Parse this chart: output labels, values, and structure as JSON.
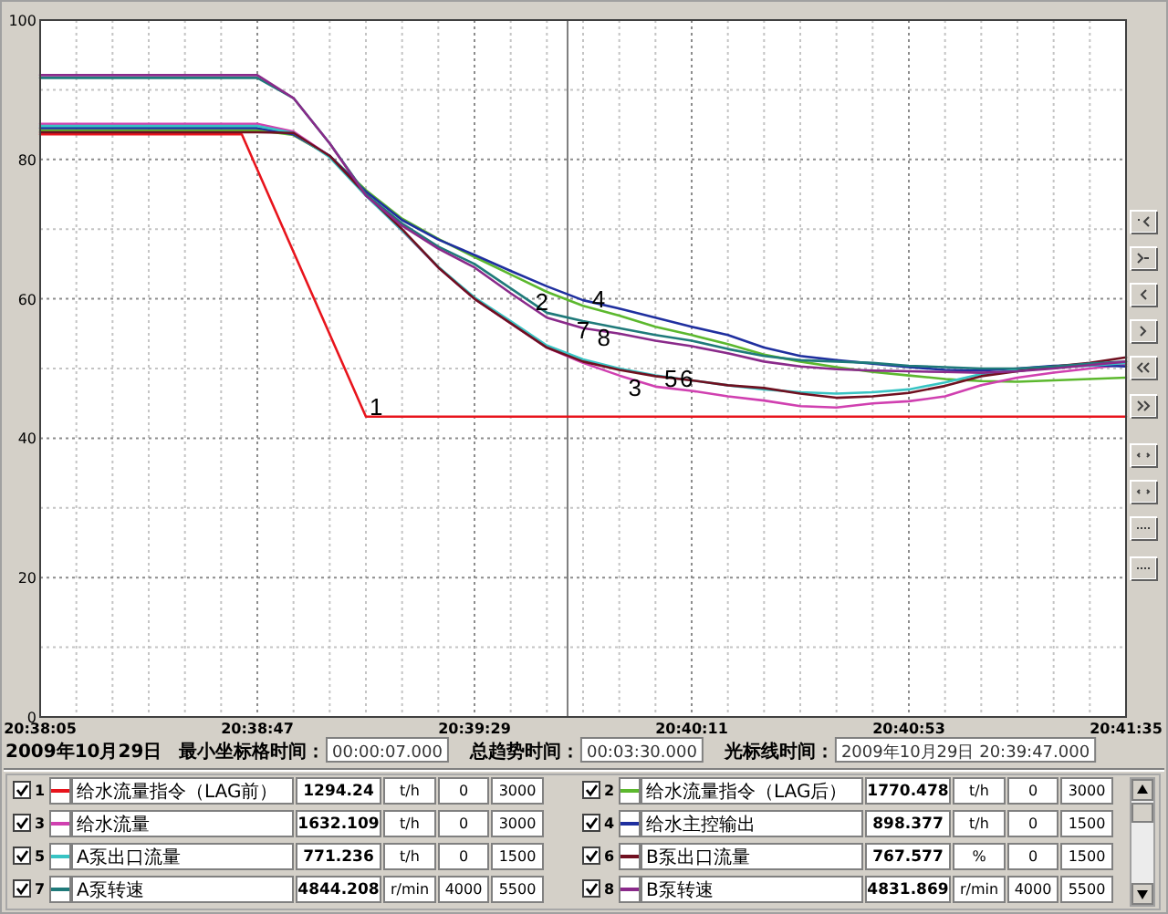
{
  "chart_data": {
    "type": "line",
    "x": [
      "2009-10-29T20:38:05",
      "2009-10-29T20:38:12",
      "2009-10-29T20:38:19",
      "2009-10-29T20:38:26",
      "2009-10-29T20:38:33",
      "2009-10-29T20:38:40",
      "2009-10-29T20:38:47",
      "2009-10-29T20:38:54",
      "2009-10-29T20:39:01",
      "2009-10-29T20:39:08",
      "2009-10-29T20:39:15",
      "2009-10-29T20:39:22",
      "2009-10-29T20:39:29",
      "2009-10-29T20:39:36",
      "2009-10-29T20:39:43",
      "2009-10-29T20:39:50",
      "2009-10-29T20:39:57",
      "2009-10-29T20:40:04",
      "2009-10-29T20:40:11",
      "2009-10-29T20:40:18",
      "2009-10-29T20:40:25",
      "2009-10-29T20:40:32",
      "2009-10-29T20:40:39",
      "2009-10-29T20:40:46",
      "2009-10-29T20:40:53",
      "2009-10-29T20:41:00",
      "2009-10-29T20:41:07",
      "2009-10-29T20:41:14",
      "2009-10-29T20:41:21",
      "2009-10-29T20:41:28",
      "2009-10-29T20:41:35"
    ],
    "series": [
      {
        "name": "给水流量指令（LAG前）",
        "color": "#e8141c",
        "x": [
          "2009-10-29T20:38:05",
          "2009-10-29T20:38:44",
          "2009-10-29T20:39:08",
          "2009-10-29T20:41:35"
        ],
        "values": [
          83.6,
          83.6,
          43.1,
          43.1
        ]
      },
      {
        "name": "给水流量指令（LAG后）",
        "color": "#5cb82e",
        "values": [
          84.2,
          84.2,
          84.2,
          84.2,
          84.2,
          84.2,
          84.2,
          83.5,
          80.5,
          75.6,
          71.5,
          68.6,
          66.0,
          63.5,
          61.0,
          59.0,
          57.6,
          56.0,
          54.8,
          53.5,
          52.0,
          51.0,
          50.2,
          49.5,
          49.0,
          48.5,
          48.2,
          48.1,
          48.3,
          48.5,
          48.7
        ]
      },
      {
        "name": "给水流量",
        "color": "#d040b0",
        "values": [
          85.1,
          85.1,
          85.1,
          85.1,
          85.1,
          85.1,
          85.1,
          84.0,
          80.5,
          75.0,
          69.8,
          64.5,
          60.0,
          56.5,
          53.0,
          50.8,
          49.0,
          47.4,
          46.8,
          46.0,
          45.4,
          44.6,
          44.4,
          45.0,
          45.3,
          46.0,
          47.6,
          48.7,
          49.4,
          50.0,
          50.6
        ]
      },
      {
        "name": "给水主控输出",
        "color": "#1f2f9f",
        "values": [
          84.5,
          84.5,
          84.5,
          84.5,
          84.5,
          84.5,
          84.5,
          83.6,
          80.5,
          75.4,
          71.3,
          68.5,
          66.3,
          64.0,
          61.8,
          59.8,
          58.6,
          57.3,
          56.0,
          54.8,
          53.0,
          51.8,
          51.2,
          50.7,
          50.2,
          49.8,
          49.7,
          50.0,
          50.4,
          50.5,
          50.3
        ]
      },
      {
        "name": "A泵出口流量",
        "color": "#38c4c4",
        "values": [
          84.8,
          84.8,
          84.8,
          84.8,
          84.8,
          84.8,
          84.8,
          83.8,
          80.3,
          74.8,
          69.8,
          64.6,
          60.2,
          56.8,
          53.3,
          51.3,
          50.0,
          49.0,
          48.3,
          47.6,
          47.0,
          46.6,
          46.4,
          46.6,
          47.0,
          48.0,
          49.2,
          49.8,
          50.2,
          50.4,
          50.8
        ]
      },
      {
        "name": "B泵出口流量",
        "color": "#701020",
        "values": [
          83.9,
          83.9,
          83.9,
          83.9,
          83.9,
          83.9,
          83.9,
          83.8,
          80.5,
          75.0,
          70.0,
          64.5,
          60.0,
          56.5,
          53.0,
          51.0,
          49.8,
          48.9,
          48.3,
          47.6,
          47.2,
          46.4,
          45.8,
          46.0,
          46.5,
          47.5,
          48.9,
          49.6,
          50.3,
          50.8,
          51.6
        ]
      },
      {
        "name": "A泵转速",
        "color": "#1f7a7a",
        "values": [
          91.7,
          91.7,
          91.7,
          91.7,
          91.7,
          91.7,
          91.7,
          88.8,
          82.3,
          75.0,
          70.8,
          67.5,
          65.0,
          61.5,
          58.0,
          56.8,
          55.8,
          54.8,
          54.0,
          52.8,
          51.8,
          51.2,
          51.0,
          50.8,
          50.4,
          50.2,
          50.0,
          50.0,
          50.3,
          50.7,
          51.0
        ]
      },
      {
        "name": "B泵转速",
        "color": "#8a2a8a",
        "values": [
          92.1,
          92.1,
          92.1,
          92.1,
          92.1,
          92.1,
          92.1,
          88.8,
          82.3,
          74.8,
          70.5,
          67.2,
          64.5,
          60.8,
          57.3,
          55.8,
          55.0,
          54.0,
          53.2,
          52.2,
          51.0,
          50.3,
          49.9,
          49.7,
          49.6,
          49.5,
          49.4,
          49.6,
          50.0,
          50.5,
          51.0
        ]
      }
    ],
    "xlim": [
      "2009-10-29T20:38:05",
      "2009-10-29T20:41:35"
    ],
    "xticks": [
      {
        "value": "2009-10-29T20:38:05",
        "label": "20:38:05"
      },
      {
        "value": "2009-10-29T20:38:12",
        "label": null
      },
      {
        "value": "2009-10-29T20:38:19",
        "label": null
      },
      {
        "value": "2009-10-29T20:38:26",
        "label": null
      },
      {
        "value": "2009-10-29T20:38:33",
        "label": null
      },
      {
        "value": "2009-10-29T20:38:40",
        "label": null
      },
      {
        "value": "2009-10-29T20:38:47",
        "label": "20:38:47"
      },
      {
        "value": "2009-10-29T20:38:54",
        "label": null
      },
      {
        "value": "2009-10-29T20:39:01",
        "label": null
      },
      {
        "value": "2009-10-29T20:39:08",
        "label": null
      },
      {
        "value": "2009-10-29T20:39:15",
        "label": null
      },
      {
        "value": "2009-10-29T20:39:22",
        "label": null
      },
      {
        "value": "2009-10-29T20:39:29",
        "label": "20:39:29"
      },
      {
        "value": "2009-10-29T20:39:36",
        "label": null
      },
      {
        "value": "2009-10-29T20:39:43",
        "label": null
      },
      {
        "value": "2009-10-29T20:39:50",
        "label": null
      },
      {
        "value": "2009-10-29T20:39:57",
        "label": null
      },
      {
        "value": "2009-10-29T20:40:04",
        "label": null
      },
      {
        "value": "2009-10-29T20:40:11",
        "label": "20:40:11"
      },
      {
        "value": "2009-10-29T20:40:18",
        "label": null
      },
      {
        "value": "2009-10-29T20:40:25",
        "label": null
      },
      {
        "value": "2009-10-29T20:40:32",
        "label": null
      },
      {
        "value": "2009-10-29T20:40:39",
        "label": null
      },
      {
        "value": "2009-10-29T20:40:46",
        "label": null
      },
      {
        "value": "2009-10-29T20:40:53",
        "label": "20:40:53"
      },
      {
        "value": "2009-10-29T20:41:00",
        "label": null
      },
      {
        "value": "2009-10-29T20:41:07",
        "label": null
      },
      {
        "value": "2009-10-29T20:41:14",
        "label": null
      },
      {
        "value": "2009-10-29T20:41:21",
        "label": null
      },
      {
        "value": "2009-10-29T20:41:28",
        "label": null
      },
      {
        "value": "2009-10-29T20:41:35",
        "label": "20:41:35"
      }
    ],
    "ylim": [
      0,
      100
    ],
    "yticks": [
      0,
      {
        "value": 10,
        "label": null
      },
      20,
      {
        "value": 30,
        "label": null
      },
      40,
      {
        "value": 50,
        "label": null
      },
      60,
      {
        "value": 70,
        "label": null
      },
      80,
      {
        "value": 90,
        "label": null
      },
      100
    ],
    "grid": true,
    "legend": "bottom",
    "ref_lines": [
      {
        "axis": "x",
        "value": "2009-10-29T20:39:47",
        "color": "#808080"
      }
    ],
    "annotations": [
      {
        "text": "1",
        "x": "2009-10-29T20:39:10",
        "y": 44.5
      },
      {
        "text": "2",
        "x": "2009-10-29T20:39:42",
        "y": 59.6
      },
      {
        "text": "4",
        "x": "2009-10-29T20:39:53",
        "y": 60
      },
      {
        "text": "7",
        "x": "2009-10-29T20:39:50",
        "y": 55.5
      },
      {
        "text": "8",
        "x": "2009-10-29T20:39:54",
        "y": 54.5
      },
      {
        "text": "3",
        "x": "2009-10-29T20:40:00",
        "y": 47.3
      },
      {
        "text": "5",
        "x": "2009-10-29T20:40:07",
        "y": 48.5
      },
      {
        "text": "6",
        "x": "2009-10-29T20:40:10",
        "y": 48.5
      },
      "2009年10月29日",
      "最小坐标格时间：",
      "00:00:07.000",
      "总趋势时间：",
      "00:03:30.000",
      "光标线时间：",
      "2009年10月29日 20:39:47.000",
      "1",
      "1294.24",
      "t/h",
      "0",
      "3000",
      "2",
      "1770.478",
      "t/h",
      "0",
      "3000",
      "3",
      "1632.109",
      "t/h",
      "0",
      "3000",
      "4",
      "898.377",
      "t/h",
      "0",
      "1500",
      "5",
      "771.236",
      "t/h",
      "0",
      "1500",
      "6",
      "767.577",
      "%",
      "0",
      "1500",
      "7",
      "4844.208",
      "r/min",
      "4000",
      "5500",
      "8",
      "4831.869",
      "r/min",
      "4000",
      "5500"
    ]
  }
}
